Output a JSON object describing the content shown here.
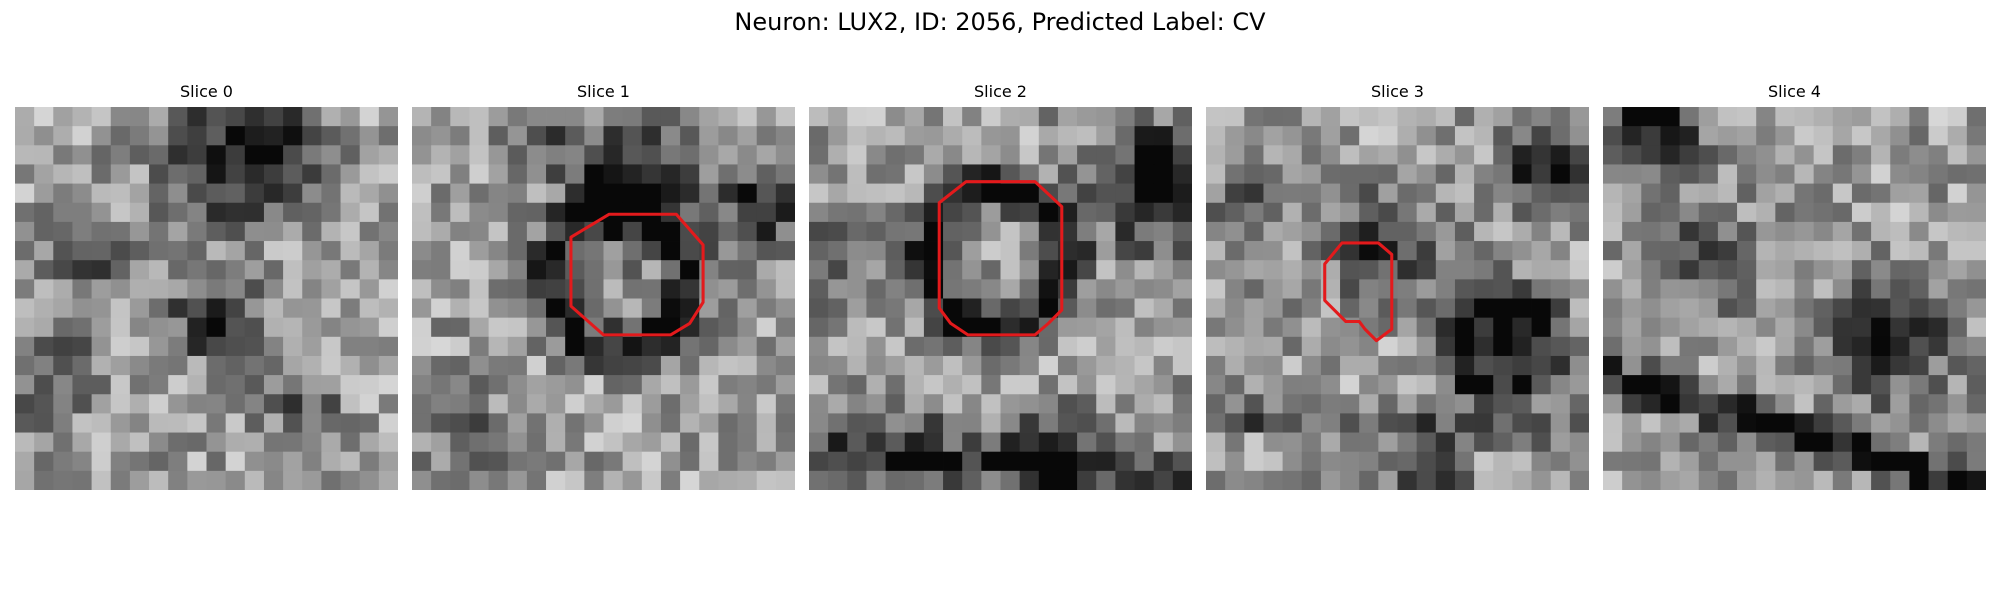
{
  "figure": {
    "title": "Neuron: LUX2, ID: 2056, Predicted Label: CV",
    "outline_color": "#e31a1c"
  },
  "panels": [
    {
      "title": "Slice 0",
      "outline": null
    },
    {
      "title": "Slice 1",
      "outline": [
        [
          8.3,
          6.8
        ],
        [
          10.3,
          5.6
        ],
        [
          13.8,
          5.6
        ],
        [
          15.2,
          7.2
        ],
        [
          15.2,
          10.2
        ],
        [
          14.5,
          11.3
        ],
        [
          13.5,
          11.9
        ],
        [
          10.0,
          11.9
        ],
        [
          8.3,
          10.4
        ]
      ]
    },
    {
      "title": "Slice 2",
      "outline": [
        [
          6.8,
          5.0
        ],
        [
          8.2,
          3.9
        ],
        [
          11.8,
          3.9
        ],
        [
          13.2,
          5.2
        ],
        [
          13.2,
          10.6
        ],
        [
          12.5,
          11.3
        ],
        [
          11.8,
          11.9
        ],
        [
          8.3,
          11.9
        ],
        [
          7.4,
          11.3
        ],
        [
          6.8,
          10.5
        ]
      ]
    },
    {
      "title": "Slice 3",
      "outline": [
        [
          6.2,
          8.2
        ],
        [
          7.1,
          7.1
        ],
        [
          9.0,
          7.1
        ],
        [
          9.7,
          7.7
        ],
        [
          9.7,
          11.6
        ],
        [
          8.9,
          12.2
        ],
        [
          8.3,
          11.6
        ],
        [
          8.0,
          11.2
        ],
        [
          7.3,
          11.2
        ],
        [
          6.2,
          10.1
        ]
      ]
    },
    {
      "title": "Slice 4",
      "outline": null
    }
  ]
}
